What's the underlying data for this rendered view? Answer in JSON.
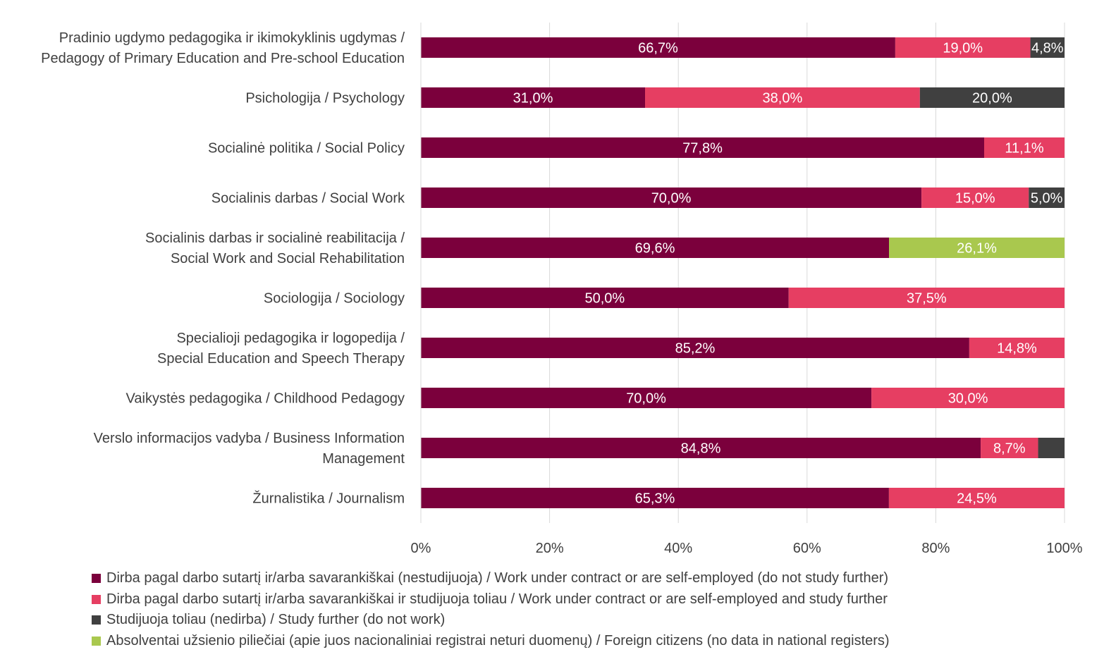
{
  "chart_data": {
    "type": "bar",
    "orientation": "horizontal",
    "stacked": true,
    "percent_stacked": true,
    "categories": [
      [
        "Pradinio ugdymo pedagogika ir ikimokyklinis ugdymas /",
        "Pedagogy of Primary Education and Pre-school Education"
      ],
      [
        "Psichologija / Psychology"
      ],
      [
        "Socialinė politika / Social Policy"
      ],
      [
        "Socialinis darbas / Social Work"
      ],
      [
        "Socialinis darbas ir socialinė reabilitacija /",
        "Social Work and Social Rehabilitation"
      ],
      [
        "Sociologija / Sociology"
      ],
      [
        "Specialioji pedagogika ir logopedija /",
        "Special Education and Speech Therapy"
      ],
      [
        "Vaikystės pedagogika / Childhood Pedagogy"
      ],
      [
        "Verslo informacijos vadyba / Business Information",
        "Management"
      ],
      [
        "Žurnalistika / Journalism"
      ]
    ],
    "series": [
      {
        "name": "Dirba pagal darbo sutartį ir/arba savarankiškai (nestudijuoja) / Work under contract or are self-employed (do not study further)",
        "color": "#7B003C",
        "values": [
          66.7,
          31.0,
          77.8,
          70.0,
          69.6,
          50.0,
          85.2,
          70.0,
          84.8,
          65.3
        ],
        "labels": [
          "66,7%",
          "31,0%",
          "77,8%",
          "70,0%",
          "69,6%",
          "50,0%",
          "85,2%",
          "70,0%",
          "84,8%",
          "65,3%"
        ]
      },
      {
        "name": "Dirba pagal darbo sutartį ir/arba savarankiškai  ir studijuoja toliau / Work under contract or are self-employed and study further",
        "color": "#E63E62",
        "values": [
          19.0,
          38.0,
          11.1,
          15.0,
          0,
          37.5,
          14.8,
          30.0,
          8.7,
          24.5
        ],
        "labels": [
          "19,0%",
          "38,0%",
          "11,1%",
          "15,0%",
          "",
          "37,5%",
          "14,8%",
          "30,0%",
          "8,7%",
          "24,5%"
        ]
      },
      {
        "name": "Studijuoja toliau (nedirba) / Study further (do not work)",
        "color": "#404040",
        "values": [
          4.8,
          20.0,
          0,
          5.0,
          0,
          0,
          0,
          0,
          4.0,
          0
        ],
        "labels": [
          "4,8%",
          "20,0%",
          "",
          "5,0%",
          "",
          "",
          "",
          "",
          "",
          ""
        ]
      },
      {
        "name": "Absolventai užsienio piliečiai (apie juos nacionaliniai registrai neturi duomenų) / Foreign citizens (no data in national registers)",
        "color": "#A9C84E",
        "values": [
          0,
          0,
          0,
          0,
          26.1,
          0,
          0,
          0,
          0,
          0
        ],
        "labels": [
          "",
          "",
          "",
          "",
          "26,1%",
          "",
          "",
          "",
          "",
          ""
        ]
      }
    ],
    "x_ticks": [
      "0%",
      "20%",
      "40%",
      "60%",
      "80%",
      "100%"
    ],
    "xlim": [
      0,
      100
    ],
    "grid": true,
    "legend_position": "bottom"
  }
}
